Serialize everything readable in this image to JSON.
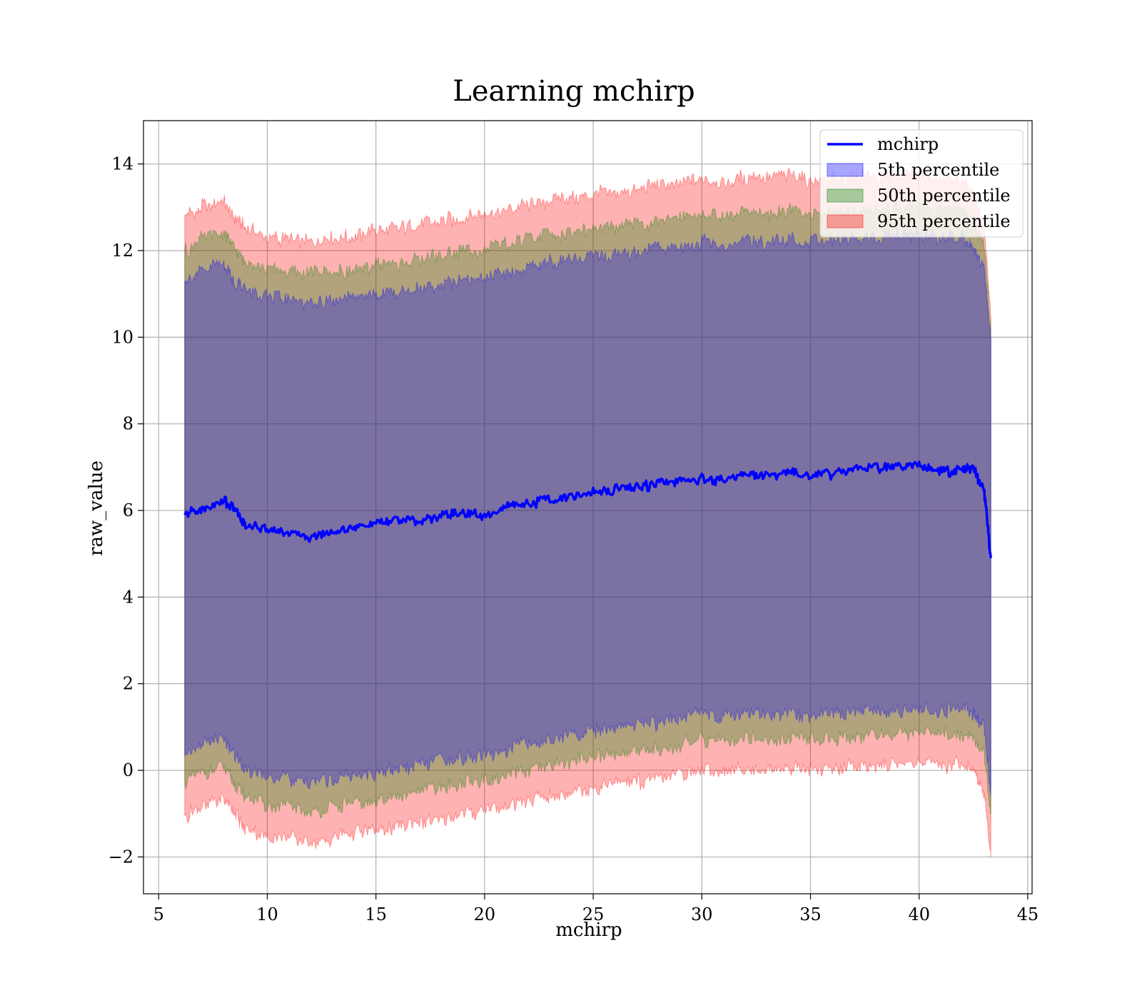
{
  "chart_data": {
    "type": "area",
    "title": "Learning mchirp",
    "xlabel": "mchirp",
    "ylabel": "raw_value",
    "xlim": [
      4.3,
      45.2
    ],
    "ylim": [
      -2.85,
      15.0
    ],
    "xticks": [
      5,
      10,
      15,
      20,
      25,
      30,
      35,
      40,
      45
    ],
    "yticks": [
      -2,
      0,
      2,
      4,
      6,
      8,
      10,
      12,
      14
    ],
    "xtick_labels": [
      "5",
      "10",
      "15",
      "20",
      "25",
      "30",
      "35",
      "40",
      "45"
    ],
    "ytick_labels": [
      "−2",
      "0",
      "2",
      "4",
      "6",
      "8",
      "10",
      "12",
      "14"
    ],
    "grid": true,
    "legend_position": "top-right",
    "x": [
      6.2,
      7.0,
      8.0,
      8.5,
      9.0,
      10.0,
      11.0,
      12.0,
      13.0,
      14.0,
      15.0,
      16.0,
      17.0,
      18.0,
      19.0,
      20.0,
      21.0,
      22.0,
      23.0,
      24.0,
      25.0,
      26.0,
      27.0,
      28.0,
      29.0,
      30.0,
      31.0,
      32.0,
      33.0,
      34.0,
      35.0,
      36.0,
      37.0,
      38.0,
      39.0,
      40.0,
      41.0,
      42.0,
      42.5,
      43.0,
      43.3
    ],
    "series": [
      {
        "name": "mchirp",
        "kind": "line",
        "color": "#0000ff",
        "values": [
          5.9,
          6.05,
          6.25,
          6.0,
          5.65,
          5.6,
          5.5,
          5.35,
          5.55,
          5.6,
          5.7,
          5.8,
          5.75,
          5.9,
          5.95,
          5.85,
          6.1,
          6.15,
          6.25,
          6.35,
          6.4,
          6.5,
          6.55,
          6.6,
          6.65,
          6.75,
          6.7,
          6.85,
          6.8,
          6.9,
          6.8,
          6.85,
          6.95,
          7.0,
          7.0,
          7.1,
          6.9,
          6.95,
          7.0,
          6.4,
          4.9
        ]
      },
      {
        "name": "5th percentile",
        "kind": "band",
        "color": "#0000ff",
        "opacity": 0.3,
        "lower": [
          0.35,
          0.6,
          0.75,
          0.35,
          0.05,
          -0.15,
          -0.2,
          -0.3,
          -0.2,
          -0.1,
          -0.05,
          0.05,
          0.15,
          0.25,
          0.3,
          0.35,
          0.5,
          0.6,
          0.75,
          0.8,
          0.9,
          1.0,
          1.05,
          1.1,
          1.2,
          1.3,
          1.25,
          1.35,
          1.3,
          1.3,
          1.25,
          1.3,
          1.35,
          1.35,
          1.4,
          1.45,
          1.35,
          1.45,
          1.3,
          1.0,
          -0.6
        ],
        "upper": [
          11.3,
          11.55,
          11.7,
          11.3,
          11.1,
          10.9,
          10.85,
          10.8,
          10.85,
          10.9,
          11.0,
          11.05,
          11.15,
          11.25,
          11.3,
          11.4,
          11.5,
          11.6,
          11.7,
          11.75,
          11.85,
          11.9,
          11.95,
          12.05,
          12.1,
          12.2,
          12.1,
          12.25,
          12.2,
          12.3,
          12.2,
          12.25,
          12.3,
          12.3,
          12.35,
          12.4,
          12.25,
          12.3,
          12.0,
          11.5,
          10.0
        ]
      },
      {
        "name": "50th percentile",
        "kind": "band",
        "color": "#008000",
        "opacity": 0.3,
        "lower": [
          -0.3,
          -0.05,
          0.1,
          -0.3,
          -0.6,
          -0.8,
          -0.85,
          -0.95,
          -0.85,
          -0.75,
          -0.7,
          -0.6,
          -0.5,
          -0.4,
          -0.3,
          -0.25,
          -0.1,
          0.0,
          0.1,
          0.2,
          0.3,
          0.4,
          0.45,
          0.5,
          0.6,
          0.7,
          0.65,
          0.75,
          0.7,
          0.75,
          0.7,
          0.75,
          0.8,
          0.8,
          0.85,
          0.9,
          0.8,
          0.85,
          0.7,
          0.4,
          -1.0
        ],
        "upper": [
          12.0,
          12.25,
          12.4,
          12.0,
          11.8,
          11.55,
          11.5,
          11.45,
          11.5,
          11.55,
          11.65,
          11.7,
          11.8,
          11.9,
          11.95,
          12.05,
          12.15,
          12.25,
          12.35,
          12.4,
          12.5,
          12.55,
          12.6,
          12.7,
          12.75,
          12.85,
          12.75,
          12.9,
          12.85,
          12.95,
          12.85,
          12.9,
          12.95,
          12.95,
          13.0,
          13.05,
          12.9,
          12.95,
          12.65,
          12.1,
          10.2
        ]
      },
      {
        "name": "95th percentile",
        "kind": "band",
        "color": "#ff0000",
        "opacity": 0.3,
        "lower": [
          -1.05,
          -0.85,
          -0.65,
          -1.0,
          -1.35,
          -1.5,
          -1.55,
          -1.65,
          -1.55,
          -1.45,
          -1.4,
          -1.3,
          -1.2,
          -1.1,
          -1.0,
          -0.95,
          -0.8,
          -0.7,
          -0.6,
          -0.5,
          -0.4,
          -0.3,
          -0.25,
          -0.2,
          -0.1,
          0.0,
          -0.05,
          0.05,
          0.0,
          0.05,
          0.0,
          0.05,
          0.1,
          0.1,
          0.15,
          0.2,
          0.1,
          0.15,
          0.0,
          -0.5,
          -2.0
        ],
        "upper": [
          12.8,
          13.0,
          13.15,
          12.75,
          12.5,
          12.3,
          12.25,
          12.2,
          12.3,
          12.35,
          12.45,
          12.5,
          12.6,
          12.7,
          12.75,
          12.85,
          12.95,
          13.05,
          13.15,
          13.2,
          13.3,
          13.35,
          13.4,
          13.5,
          13.55,
          13.65,
          13.55,
          13.7,
          13.65,
          13.75,
          13.6,
          13.65,
          13.7,
          13.7,
          13.75,
          13.8,
          13.65,
          13.6,
          13.3,
          12.5,
          10.5
        ]
      }
    ]
  }
}
